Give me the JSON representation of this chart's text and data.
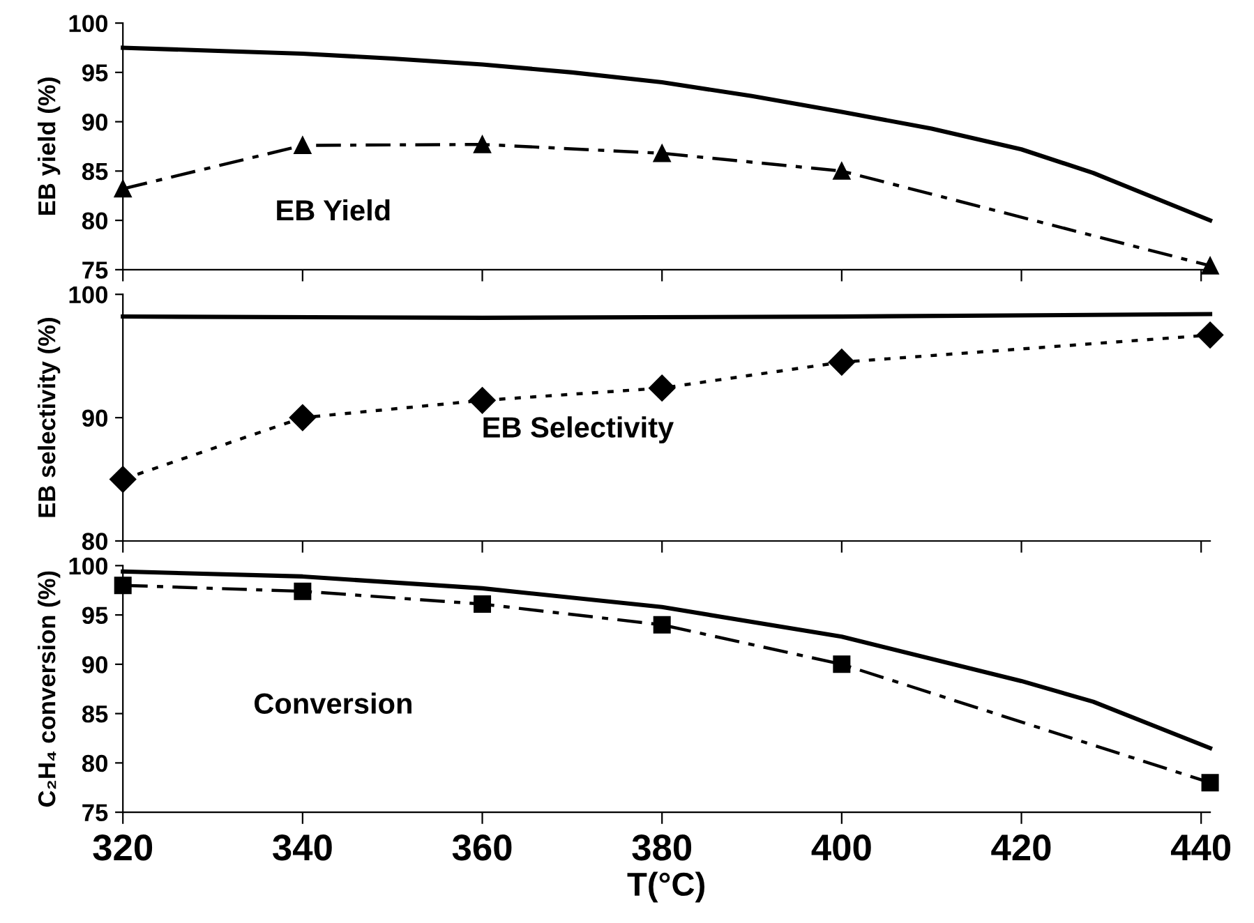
{
  "chart_data": [
    {
      "type": "line",
      "ylabel": "EB yield (%)",
      "annotations": [
        "EB Yield"
      ],
      "xlim": [
        320,
        441
      ],
      "xticks": [
        320,
        340,
        360,
        380,
        400,
        420,
        440
      ],
      "ylim": [
        75,
        100
      ],
      "yticks": [
        75,
        80,
        85,
        90,
        95,
        100
      ],
      "tick_labels": "y",
      "grid": false,
      "legend": false,
      "series": [
        {
          "color": "#000000",
          "line_style": "solid",
          "marker": "none",
          "x": [
            320,
            330,
            340,
            350,
            360,
            370,
            380,
            390,
            400,
            410,
            420,
            428,
            441
          ],
          "values": [
            97.5,
            97.2,
            96.9,
            96.4,
            95.8,
            95.0,
            94.0,
            92.6,
            91.0,
            89.3,
            87.2,
            84.8,
            80.0
          ]
        },
        {
          "color": "#000000",
          "line_style": "dashdot",
          "marker": "triangle",
          "x": [
            320,
            340,
            360,
            380,
            400,
            441
          ],
          "values": [
            83.2,
            87.6,
            87.7,
            86.8,
            85.0,
            75.4
          ]
        }
      ]
    },
    {
      "type": "line",
      "ylabel": "EB selectivity (%)",
      "annotations": [
        "EB Selectivity"
      ],
      "xlim": [
        320,
        441
      ],
      "xticks": [
        320,
        340,
        360,
        380,
        400,
        420,
        440
      ],
      "ylim": [
        80,
        100
      ],
      "yticks": [
        80,
        90,
        100
      ],
      "tick_labels": "y",
      "grid": false,
      "legend": false,
      "series": [
        {
          "color": "#000000",
          "line_style": "solid",
          "marker": "none",
          "x": [
            320,
            360,
            400,
            441
          ],
          "values": [
            98.2,
            98.1,
            98.2,
            98.4
          ]
        },
        {
          "color": "#000000",
          "line_style": "dotted",
          "marker": "diamond",
          "x": [
            320,
            340,
            360,
            380,
            400,
            441
          ],
          "values": [
            85.0,
            90.0,
            91.4,
            92.4,
            94.5,
            96.7
          ]
        }
      ]
    },
    {
      "type": "line",
      "xlabel": "T(°C)",
      "ylabel": "C₂H₄ conversion (%)",
      "annotations": [
        "Conversion"
      ],
      "xlim": [
        320,
        441
      ],
      "xticks": [
        320,
        340,
        360,
        380,
        400,
        420,
        440
      ],
      "ylim": [
        75,
        100
      ],
      "yticks": [
        75,
        80,
        85,
        90,
        95,
        100
      ],
      "grid": false,
      "legend": false,
      "series": [
        {
          "color": "#000000",
          "line_style": "solid",
          "marker": "none",
          "x": [
            320,
            340,
            360,
            380,
            400,
            420,
            428,
            441
          ],
          "values": [
            99.4,
            98.9,
            97.7,
            95.8,
            92.8,
            88.3,
            86.2,
            81.5
          ]
        },
        {
          "color": "#000000",
          "line_style": "dashdot",
          "marker": "square",
          "x": [
            320,
            340,
            360,
            380,
            400,
            441
          ],
          "values": [
            98.0,
            97.4,
            96.1,
            94.0,
            90.0,
            78.0
          ]
        }
      ]
    }
  ]
}
